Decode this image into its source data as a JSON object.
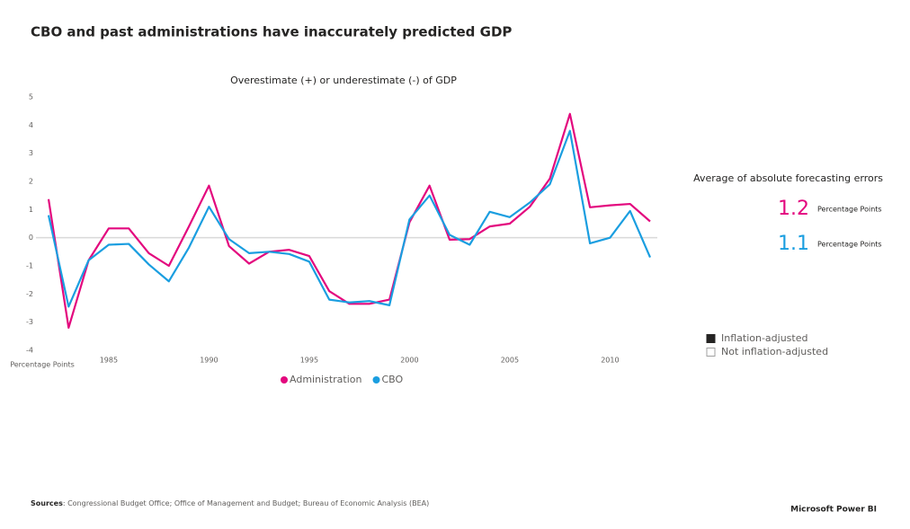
{
  "header": {
    "title": "CBO and past administrations have inaccurately predicted GDP"
  },
  "chart_data": {
    "type": "line",
    "title": "Overestimate (+) or underestimate (-) of GDP",
    "y_label": "Percentage Points",
    "x": [
      1982,
      1983,
      1984,
      1985,
      1986,
      1987,
      1988,
      1989,
      1990,
      1991,
      1992,
      1993,
      1994,
      1995,
      1996,
      1997,
      1998,
      1999,
      2000,
      2001,
      2002,
      2003,
      2004,
      2005,
      2006,
      2007,
      2008,
      2009,
      2010,
      2011,
      2012
    ],
    "series": [
      {
        "name": "Administration",
        "color": "#e3087e",
        "values": [
          1.37,
          -3.2,
          -0.8,
          0.33,
          0.33,
          -0.55,
          -1.0,
          0.4,
          1.85,
          -0.3,
          -0.92,
          -0.5,
          -0.43,
          -0.65,
          -1.9,
          -2.35,
          -2.35,
          -2.2,
          0.55,
          1.85,
          -0.07,
          -0.05,
          0.4,
          0.5,
          1.1,
          2.1,
          4.4,
          1.08,
          1.15,
          1.2,
          0.58
        ]
      },
      {
        "name": "CBO",
        "color": "#1a9ee0",
        "values": [
          0.8,
          -2.45,
          -0.8,
          -0.25,
          -0.22,
          -0.95,
          -1.55,
          -0.35,
          1.1,
          -0.05,
          -0.55,
          -0.5,
          -0.58,
          -0.85,
          -2.2,
          -2.3,
          -2.25,
          -2.4,
          0.65,
          1.5,
          0.1,
          -0.25,
          0.92,
          0.73,
          1.25,
          1.9,
          3.8,
          -0.2,
          0.0,
          0.95,
          -0.7
        ]
      }
    ],
    "xlim": [
      1982,
      2012
    ],
    "xticks": [
      1985,
      1990,
      1995,
      2000,
      2005,
      2010
    ],
    "ylim": [
      -4,
      5
    ],
    "yticks": [
      -4,
      -3,
      -2,
      -1,
      0,
      1,
      2,
      3,
      4,
      5
    ],
    "zero_line": true,
    "legend": "bottom"
  },
  "card": {
    "title": "Average of absolute forecasting errors",
    "items": [
      {
        "value": 1.2,
        "unit": "Percentage Points",
        "color": "#e3087e"
      },
      {
        "value": 1.1,
        "unit": "Percentage Points",
        "color": "#1a9ee0"
      }
    ]
  },
  "slicer": {
    "items": [
      {
        "label": "Inflation-adjusted",
        "selected": true
      },
      {
        "label": "Not inflation-adjusted",
        "selected": false
      }
    ]
  },
  "sources": {
    "label": "Sources",
    "text": ": Congressional Budget Office; Office of Management and Budget; Bureau of Economic Analysis (BEA)"
  },
  "footer": {
    "brand": "Microsoft Power BI"
  }
}
